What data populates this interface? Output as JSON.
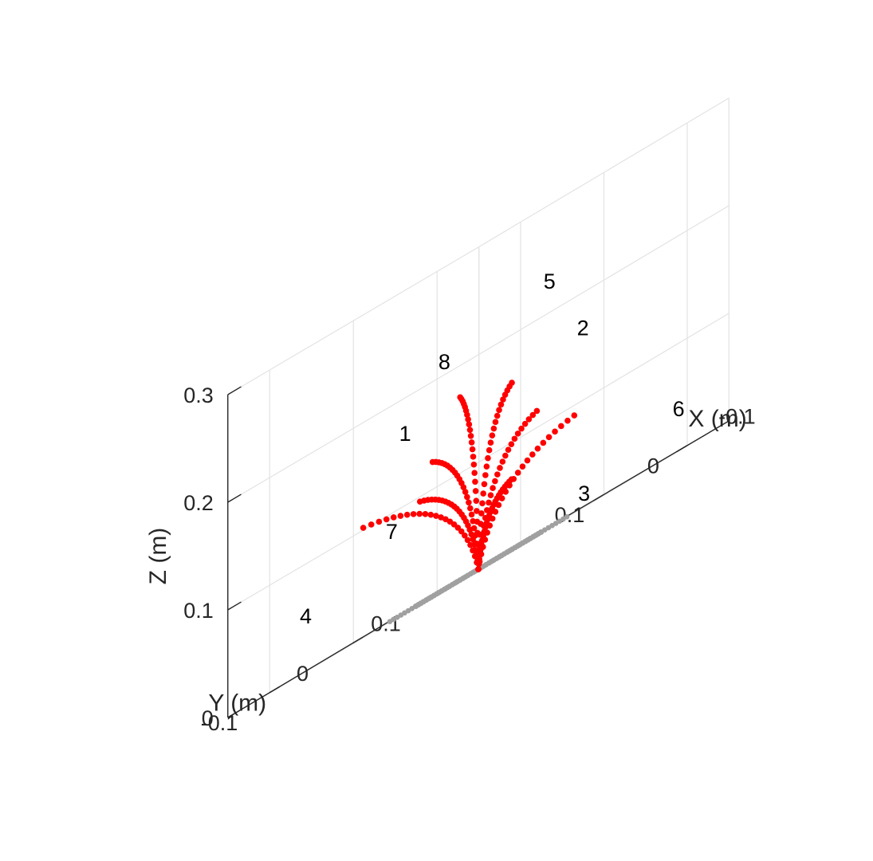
{
  "chart_data": {
    "type": "scatter3d",
    "view": "isometric",
    "x_axis": {
      "label": "X (m)",
      "ticks": [
        -0.1,
        0,
        0.1
      ],
      "tick_labels": [
        "-0.1",
        "0",
        "0.1"
      ]
    },
    "y_axis": {
      "label": "Y (m)",
      "ticks": [
        -0.1,
        0,
        0.1
      ],
      "tick_labels": [
        "-0.1",
        "0",
        "0.1"
      ]
    },
    "z_axis": {
      "label": "Z (m)",
      "ticks": [
        0,
        0.1,
        0.2,
        0.3
      ],
      "tick_labels": [
        "0",
        "0.1",
        "0.2",
        "0.3"
      ]
    },
    "xlim": [
      -0.15,
      0.15
    ],
    "ylim": [
      -0.15,
      0.15
    ],
    "zlim": [
      0,
      0.3
    ],
    "grid": true,
    "colors": {
      "deformed": "#ff0000",
      "initial": "#a0a0a0",
      "grid": "#e3e3e3",
      "axis": "#262626"
    },
    "origin": [
      0,
      0,
      0
    ],
    "points_per_curve": 24,
    "series": [
      {
        "label": "1",
        "tip": [
          -0.02,
          -0.075,
          0.125
        ],
        "initial_tip": [
          0.053,
          -0.053,
          0.0
        ],
        "label_pos": [
          -0.012,
          -0.1,
          0.16
        ]
      },
      {
        "label": "2",
        "tip": [
          -0.05,
          0.02,
          0.115
        ],
        "initial_tip": [
          -0.075,
          0.0,
          0.0
        ],
        "label_pos": [
          -0.1,
          0.025,
          0.16
        ]
      },
      {
        "label": "3",
        "tip": [
          0.035,
          0.075,
          0.065
        ],
        "initial_tip": [
          -0.053,
          0.053,
          0.0
        ],
        "label_pos": [
          0.003,
          0.13,
          0.005
        ]
      },
      {
        "label": "4",
        "tip": [
          0.028,
          -0.11,
          0.102
        ],
        "initial_tip": [
          0.075,
          0.0,
          0.0
        ],
        "label_pos": [
          0.022,
          -0.185,
          0.045
        ]
      },
      {
        "label": "5",
        "tip": [
          -0.05,
          -0.01,
          0.155
        ],
        "initial_tip": [
          -0.053,
          -0.053,
          0.0
        ],
        "label_pos": [
          -0.098,
          -0.013,
          0.222
        ]
      },
      {
        "label": "6",
        "tip": [
          -0.025,
          0.09,
          0.09
        ],
        "initial_tip": [
          0.0,
          0.075,
          0.0
        ],
        "label_pos": [
          -0.072,
          0.168,
          0.032
        ]
      },
      {
        "label": "7",
        "tip": [
          0.018,
          -0.052,
          0.095
        ],
        "initial_tip": [
          0.0,
          -0.075,
          0.0
        ],
        "label_pos": [
          -0.003,
          -0.107,
          0.076
        ]
      },
      {
        "label": "8",
        "tip": [
          -0.038,
          -0.06,
          0.17
        ],
        "initial_tip": [
          0.053,
          0.053,
          0.0
        ],
        "label_pos": [
          -0.047,
          -0.088,
          0.205
        ]
      }
    ]
  }
}
